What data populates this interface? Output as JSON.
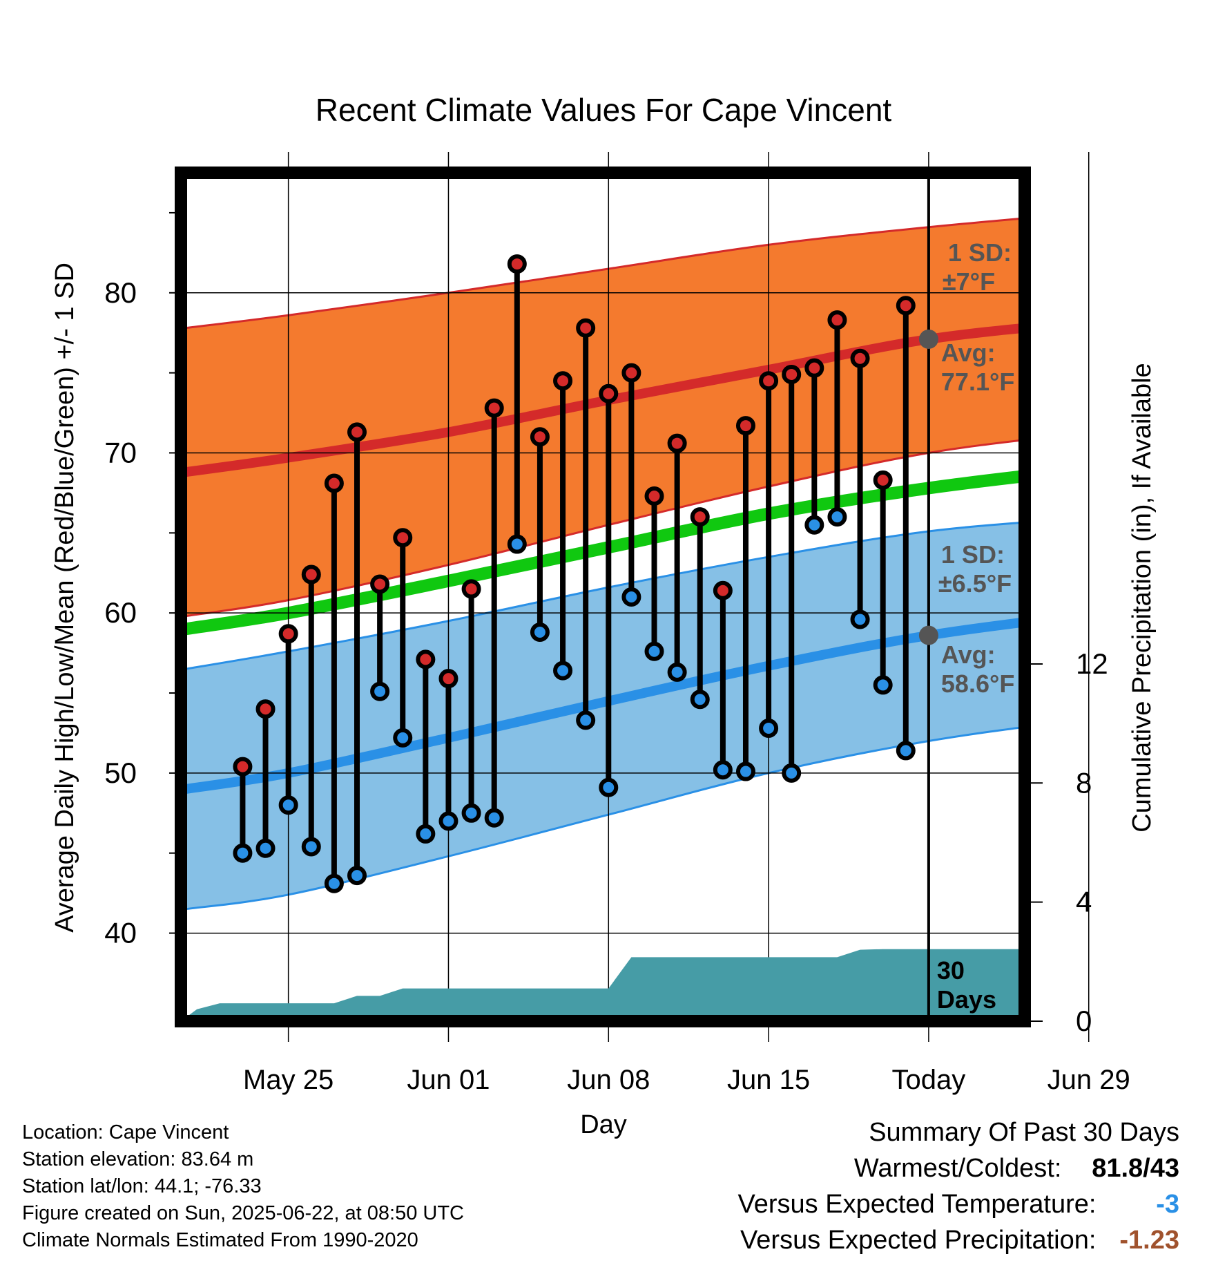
{
  "chart_data": {
    "type": "line",
    "title": "Recent Climate Values For Cape Vincent",
    "xlabel": "Day",
    "ylabel": "Average Daily High/Low/Mean (Red/Blue/Green) +/- 1 SD",
    "y2label": "Cumulative Precipitation (in), If Available",
    "ylim": [
      34.5,
      87.5
    ],
    "y2lim": [
      0,
      28.5
    ],
    "xlim": [
      -4.7,
      32.2
    ],
    "y_ticks": [
      "40",
      "50",
      "60",
      "70",
      "80"
    ],
    "y2_ticks": [
      "0",
      "4",
      "8",
      "12"
    ],
    "x_ticks": [
      {
        "label": "May 25",
        "day": 0
      },
      {
        "label": "Jun 01",
        "day": 7
      },
      {
        "label": "Jun 08",
        "day": 14
      },
      {
        "label": "Jun 15",
        "day": 21
      },
      {
        "label": "Today",
        "day": 28
      },
      {
        "label": "Jun 29",
        "day": 35
      }
    ],
    "grid": true,
    "colors": {
      "high_band": "#f47a2e",
      "high_mean": "#d42a2a",
      "low_band": "#86c0e6",
      "low_mean": "#2a90e6",
      "overall_mean": "#10c810",
      "precip": "#469ca6",
      "high_point": "#d42a2a",
      "low_point": "#2a90e6",
      "marker": "#555555",
      "temp_anomaly": "#2a90e6",
      "precip_anomaly": "#a0522d"
    },
    "normals": {
      "x": [
        -4.5,
        0,
        7,
        14,
        21,
        28,
        35,
        40.5
      ],
      "high_mean": [
        68.8,
        69.7,
        71.3,
        73.3,
        75.2,
        77.1,
        78.2,
        79
      ],
      "high_sd_upper": [
        77.8,
        78.6,
        80,
        81.5,
        83,
        84.1,
        85,
        85.6
      ],
      "high_sd_lower": [
        59.8,
        60.8,
        63,
        65.5,
        67.9,
        70,
        71.3,
        72.4
      ],
      "overall_mean": [
        59,
        60,
        62,
        64.1,
        66.2,
        67.8,
        69,
        69.8
      ],
      "low_mean": [
        49,
        50,
        52.2,
        54.5,
        56.7,
        58.6,
        59.9,
        60.7
      ],
      "low_sd_upper": [
        56.5,
        57.6,
        59.5,
        61.6,
        63.5,
        65.1,
        66,
        66.9
      ],
      "low_sd_lower": [
        41.5,
        42.4,
        44.8,
        47.4,
        50,
        52,
        53.4,
        54.4
      ]
    },
    "series": [
      {
        "name": "Daily High",
        "x": [
          -2,
          -1,
          0,
          1,
          2,
          3,
          4,
          5,
          6,
          7,
          8,
          9,
          10,
          11,
          12,
          13,
          14,
          15,
          16,
          17,
          18,
          19,
          20,
          21,
          22,
          23,
          24,
          25,
          26,
          27
        ],
        "values": [
          50.4,
          54,
          58.7,
          62.4,
          68.1,
          71.3,
          61.8,
          64.7,
          57.1,
          55.9,
          61.5,
          72.8,
          81.8,
          71,
          74.5,
          77.8,
          73.7,
          75,
          67.3,
          70.6,
          66,
          61.4,
          71.7,
          74.5,
          74.9,
          75.3,
          78.3,
          75.9,
          68.3,
          79.2
        ]
      },
      {
        "name": "Daily Low",
        "x": [
          -2,
          -1,
          0,
          1,
          2,
          3,
          4,
          5,
          6,
          7,
          8,
          9,
          10,
          11,
          12,
          13,
          14,
          15,
          16,
          17,
          18,
          19,
          20,
          21,
          22,
          23,
          24,
          25,
          26,
          27
        ],
        "values": [
          45,
          45.3,
          48,
          45.4,
          43.1,
          43.6,
          55.1,
          52.2,
          46.2,
          47,
          47.5,
          47.2,
          64.3,
          58.8,
          56.4,
          53.3,
          49.1,
          61,
          57.6,
          56.3,
          54.6,
          50.2,
          50.1,
          52.8,
          50,
          65.5,
          66,
          59.6,
          55.5,
          51.4
        ]
      }
    ],
    "precip": {
      "x": [
        -4.7,
        -4,
        -3,
        -2,
        2,
        3,
        4,
        5,
        6,
        14,
        15,
        16,
        17,
        18,
        19,
        20,
        21,
        22,
        23,
        24,
        25,
        26,
        27,
        32.2
      ],
      "values": [
        0,
        0.4,
        0.6,
        0.6,
        0.6,
        0.85,
        0.85,
        1.1,
        1.1,
        1.1,
        2.15,
        2.15,
        2.15,
        2.15,
        2.15,
        2.15,
        2.15,
        2.15,
        2.15,
        2.15,
        2.4,
        2.42,
        2.42,
        2.42
      ]
    },
    "annotations": {
      "high_sd_line1": "1 SD:",
      "high_sd_line2": "±7°F",
      "high_avg_line1": "Avg:",
      "high_avg_line2": "77.1°F",
      "low_sd_line1": "1 SD:",
      "low_sd_line2": "±6.5°F",
      "low_avg_line1": "Avg:",
      "low_avg_line2": "58.6°F",
      "days_line1": "30",
      "days_line2": "Days",
      "today_high_avg": 77.1,
      "today_low_avg": 58.6
    }
  },
  "info": {
    "location": "Location: Cape Vincent",
    "elevation": "Station elevation: 83.64 m",
    "latlon": "Station lat/lon: 44.1; -76.33",
    "created": "Figure created on Sun, 2025-06-22, at 08:50 UTC",
    "normals": "Climate Normals Estimated From 1990-2020"
  },
  "summary": {
    "heading": "Summary Of Past 30 Days",
    "warm_cold_label": "Warmest/Coldest:",
    "warm_cold_value": "81.8/43",
    "temp_label": "Versus Expected Temperature:",
    "temp_value": "-3",
    "precip_label": "Versus Expected Precipitation:",
    "precip_value": "-1.23"
  }
}
